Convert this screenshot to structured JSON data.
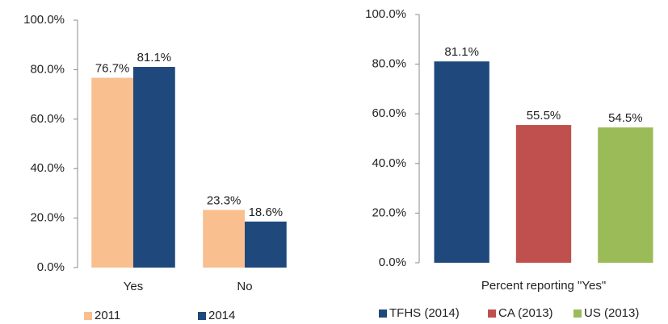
{
  "chart_data": [
    {
      "type": "bar",
      "categories": [
        "Yes",
        "No"
      ],
      "series": [
        {
          "name": "2011",
          "color": "#f9bf8f",
          "values": [
            76.7,
            23.3
          ],
          "value_labels": [
            "76.7%",
            "23.3%"
          ]
        },
        {
          "name": "2014",
          "color": "#1f497d",
          "values": [
            81.1,
            18.6
          ],
          "value_labels": [
            "81.1%",
            "18.6%"
          ]
        }
      ],
      "ylim": [
        0,
        100
      ],
      "yticks": [
        {
          "value": 0,
          "label": "0.0%"
        },
        {
          "value": 20,
          "label": "20.0%"
        },
        {
          "value": 40,
          "label": "40.0%"
        },
        {
          "value": 60,
          "label": "60.0%"
        },
        {
          "value": 80,
          "label": "80.0%"
        },
        {
          "value": 100,
          "label": "100.0%"
        }
      ],
      "grid": false,
      "legend": "bottom"
    },
    {
      "type": "bar",
      "categories": [
        "Percent reporting \"Yes\""
      ],
      "series": [
        {
          "name": "TFHS (2014)",
          "color": "#1f497d",
          "values": [
            81.1
          ],
          "value_labels": [
            "81.1%"
          ]
        },
        {
          "name": "CA (2013)",
          "color": "#c0504d",
          "values": [
            55.5
          ],
          "value_labels": [
            "55.5%"
          ]
        },
        {
          "name": "US (2013)",
          "color": "#9bbb59",
          "values": [
            54.5
          ],
          "value_labels": [
            "54.5%"
          ]
        }
      ],
      "ylim": [
        0,
        100
      ],
      "yticks": [
        {
          "value": 0,
          "label": "0.0%"
        },
        {
          "value": 20,
          "label": "20.0%"
        },
        {
          "value": 40,
          "label": "40.0%"
        },
        {
          "value": 60,
          "label": "60.0%"
        },
        {
          "value": 80,
          "label": "80.0%"
        },
        {
          "value": 100,
          "label": "100.0%"
        }
      ],
      "grid": false,
      "legend": "bottom"
    }
  ]
}
